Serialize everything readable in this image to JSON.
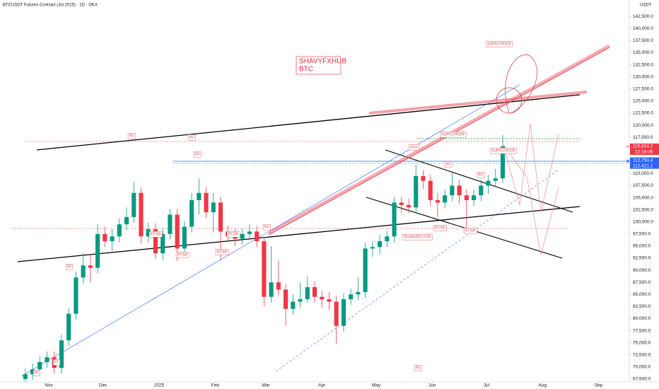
{
  "chart_data": {
    "type": "candlestick",
    "title": "BTCUSDT Futures Contract (Jul 2025) · 1D · OKX",
    "currency": "USDT",
    "note_lines": [
      "SHAVYFXHUB",
      "BTC"
    ],
    "up_color": "#089981",
    "down_color": "#f23645",
    "xlim": [
      4,
      352
    ],
    "ylim": [
      66900,
      145900
    ],
    "grid": false,
    "xticks": [
      {
        "value": 31,
        "label": "Nov"
      },
      {
        "value": 61,
        "label": "Dec"
      },
      {
        "value": 92,
        "label": "2025"
      },
      {
        "value": 123,
        "label": "Feb"
      },
      {
        "value": 151,
        "label": "Mar"
      },
      {
        "value": 182,
        "label": "Apr"
      },
      {
        "value": 212,
        "label": "May"
      },
      {
        "value": 243,
        "label": "Jun"
      },
      {
        "value": 273,
        "label": "Jul"
      },
      {
        "value": 304,
        "label": "Aug"
      },
      {
        "value": 335,
        "label": "Sep"
      }
    ],
    "yticks": [
      {
        "value": 67500,
        "label": "67,500.0"
      },
      {
        "value": 70000,
        "label": "70,000.0"
      },
      {
        "value": 72500,
        "label": "72,500.0"
      },
      {
        "value": 75000,
        "label": "75,000.0"
      },
      {
        "value": 77500,
        "label": "77,500.0"
      },
      {
        "value": 80000,
        "label": "80,000.0"
      },
      {
        "value": 82500,
        "label": "82,500.0"
      },
      {
        "value": 85000,
        "label": "85,000.0"
      },
      {
        "value": 87500,
        "label": "87,500.0"
      },
      {
        "value": 90000,
        "label": "90,000.0"
      },
      {
        "value": 92500,
        "label": "92,500.0"
      },
      {
        "value": 95000,
        "label": "95,000.0"
      },
      {
        "value": 97500,
        "label": "97,500.0"
      },
      {
        "value": 100000,
        "label": "100,000.0"
      },
      {
        "value": 102500,
        "label": "102,500.0"
      },
      {
        "value": 105000,
        "label": "105,000.0"
      },
      {
        "value": 107500,
        "label": "107,500.0"
      },
      {
        "value": 110000,
        "label": "110,000.0"
      },
      {
        "value": 112500,
        "label": "112,500.0"
      },
      {
        "value": 115000,
        "label": "115,000.0"
      },
      {
        "value": 117500,
        "label": "117,500.0"
      },
      {
        "value": 120000,
        "label": "120,000.0"
      },
      {
        "value": 122500,
        "label": "122,500.0"
      },
      {
        "value": 125000,
        "label": "125,000.0"
      },
      {
        "value": 127500,
        "label": "127,500.0"
      },
      {
        "value": 130000,
        "label": "130,000.0"
      },
      {
        "value": 132500,
        "label": "132,500.0"
      },
      {
        "value": 135000,
        "label": "135,000.0"
      },
      {
        "value": 137500,
        "label": "137,500.0"
      },
      {
        "value": 140000,
        "label": "140,000.0"
      },
      {
        "value": 142500,
        "label": "142,500.0"
      }
    ],
    "x": [
      18,
      22,
      26,
      30,
      34,
      38,
      42,
      46,
      50,
      54,
      58,
      62,
      66,
      70,
      74,
      78,
      82,
      86,
      90,
      94,
      98,
      102,
      106,
      110,
      114,
      118,
      122,
      126,
      130,
      134,
      138,
      142,
      146,
      150,
      154,
      158,
      162,
      166,
      170,
      174,
      178,
      182,
      186,
      190,
      194,
      198,
      202,
      206,
      210,
      214,
      218,
      222,
      226,
      230,
      234,
      238,
      242,
      246,
      250,
      254,
      258,
      262,
      266,
      270,
      274,
      278,
      282
    ],
    "open": [
      67500,
      68500,
      69500,
      71000,
      72000,
      69800,
      75500,
      81000,
      88500,
      91000,
      90500,
      97500,
      96000,
      97000,
      99500,
      101000,
      106000,
      97000,
      98500,
      93500,
      97500,
      101500,
      94500,
      99000,
      104500,
      106000,
      102000,
      104000,
      98000,
      97000,
      96500,
      97500,
      98000,
      96000,
      84500,
      87500,
      86000,
      82000,
      83500,
      84000,
      86500,
      84500,
      84000,
      83500,
      78500,
      84000,
      85000,
      85500,
      94500,
      94800,
      96000,
      97000,
      104000,
      103500,
      103000,
      109500,
      108500,
      104500,
      104000,
      105500,
      107500,
      105500,
      104500,
      105500,
      107500,
      108500,
      109000
    ],
    "high": [
      69700,
      70700,
      72200,
      73200,
      73200,
      76700,
      82200,
      89700,
      93500,
      93200,
      99500,
      99000,
      98500,
      100700,
      103000,
      108300,
      107200,
      99900,
      99700,
      98700,
      102700,
      102700,
      100200,
      106000,
      109000,
      107200,
      106000,
      105200,
      99200,
      98500,
      98700,
      99500,
      99200,
      96500,
      95000,
      92000,
      87200,
      85000,
      87500,
      88700,
      87700,
      85700,
      85500,
      84700,
      85200,
      86200,
      88500,
      95700,
      96000,
      97300,
      98200,
      105200,
      105200,
      104800,
      111900,
      110700,
      109700,
      106000,
      106700,
      110300,
      108700,
      106700,
      106700,
      108700,
      109700,
      111000,
      118000
    ],
    "low": [
      66800,
      67300,
      68300,
      69800,
      68600,
      68600,
      74300,
      79800,
      87300,
      87500,
      89300,
      94800,
      94000,
      95800,
      98300,
      99800,
      95500,
      95800,
      92300,
      92000,
      96300,
      92000,
      93300,
      97800,
      101500,
      100800,
      97800,
      92000,
      95800,
      95000,
      95300,
      96300,
      94800,
      82500,
      83300,
      84800,
      78500,
      80800,
      82300,
      83300,
      83300,
      82300,
      81800,
      74800,
      77300,
      82800,
      83800,
      84300,
      92800,
      93300,
      94800,
      95800,
      101800,
      101800,
      101800,
      106800,
      103300,
      101000,
      102800,
      104300,
      103800,
      98500,
      103300,
      104300,
      105800,
      107300,
      108000
    ],
    "close": [
      68500,
      69500,
      71000,
      72000,
      69800,
      75500,
      81000,
      88500,
      91000,
      90500,
      97500,
      96000,
      97000,
      99500,
      101000,
      106000,
      97000,
      98500,
      93500,
      97500,
      101500,
      94500,
      99000,
      104500,
      106000,
      102000,
      104000,
      98000,
      97000,
      96500,
      97500,
      98000,
      96000,
      84500,
      87500,
      86000,
      82000,
      83500,
      84000,
      86500,
      84500,
      84000,
      83500,
      78500,
      84000,
      85000,
      85500,
      94500,
      94800,
      96000,
      97000,
      104000,
      103500,
      103000,
      109500,
      108500,
      104500,
      104000,
      105500,
      107500,
      105500,
      104500,
      105500,
      107500,
      108500,
      109000,
      115624.2
    ],
    "price_labels": [
      {
        "value": 115624.2,
        "label": "115,624.2",
        "color": "#f23645"
      },
      {
        "value": 112750.4,
        "label": "112,750.4",
        "color": "#2962ff"
      },
      {
        "value": 112421.1,
        "label": "112,421.1",
        "color": "#2962ff"
      }
    ],
    "countdown": "22:18:06",
    "annotations": [
      "RS",
      "RS",
      "BO",
      "RT/SR",
      "RT/SR",
      "RT/SR",
      "RT/SR",
      "RS",
      "SUPPLYROOF",
      "SUPPLYROOF",
      "SUPPLYROOF",
      "DEMANDFLOOR",
      "r3/vs",
      "RS",
      "RT/SR",
      "RT/SR",
      "BO",
      "RO",
      "RT",
      "RT",
      "RT"
    ]
  }
}
